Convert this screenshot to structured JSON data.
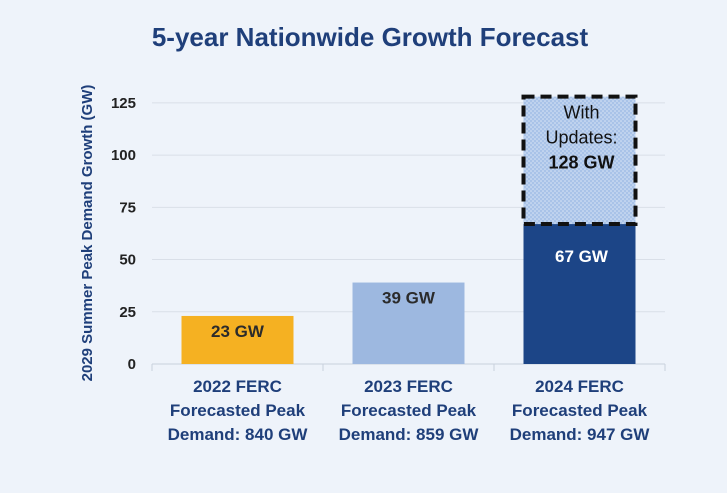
{
  "chart_data": {
    "type": "bar",
    "title": "5-year Nationwide Growth Forecast",
    "ylabel": "2029 Summer Peak Demand Growth (GW)",
    "xlabel": "",
    "ylim": [
      0,
      135
    ],
    "yticks": [
      0,
      25,
      50,
      75,
      100,
      125
    ],
    "grid": true,
    "categories": [
      [
        "2022 FERC",
        "Forecasted Peak",
        "Demand: 840 GW"
      ],
      [
        "2023 FERC",
        "Forecasted Peak",
        "Demand: 859 GW"
      ],
      [
        "2024 FERC",
        "Forecasted Peak",
        "Demand: 947 GW"
      ]
    ],
    "bars": [
      {
        "value": 23,
        "label": "23 GW",
        "color": "#f5b122",
        "label_color": "#2b2b2b"
      },
      {
        "value": 39,
        "label": "39 GW",
        "color": "#9db8e0",
        "label_color": "#2b2b2b"
      },
      {
        "value": 67,
        "label": "67 GW",
        "color": "#1c4587",
        "label_color": "#ffffff"
      }
    ],
    "stacked_update": {
      "category_index": 2,
      "total": 128,
      "color": "#a9c3e8",
      "pattern": "dotted",
      "border": "dashed",
      "text_lines": [
        "With",
        "Updates:",
        "128 GW"
      ]
    }
  }
}
